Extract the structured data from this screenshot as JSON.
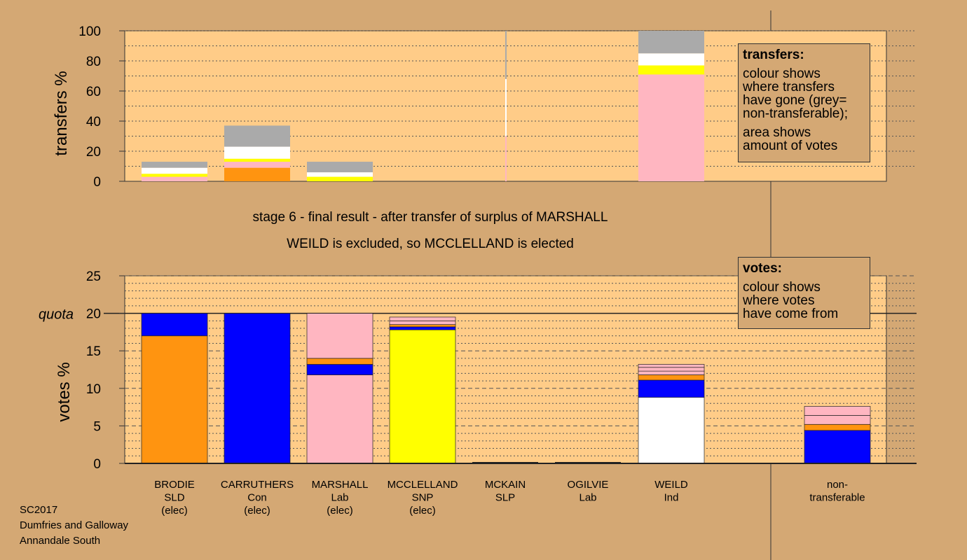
{
  "chart_data": [
    {
      "type": "bar",
      "name": "transfers",
      "ylabel": "transfers %",
      "ylim": [
        0,
        100
      ],
      "yticks": [
        0,
        20,
        40,
        60,
        80,
        100
      ],
      "columns": [
        {
          "label": "BRODIE",
          "segments": [
            {
              "color": "#FFB6C1",
              "value": 3
            },
            {
              "color": "#FFFF00",
              "value": 2
            },
            {
              "color": "#FFFFFF",
              "value": 4
            },
            {
              "color": "#AAAAAA",
              "value": 4
            }
          ]
        },
        {
          "label": "CARRUTHERS",
          "segments": [
            {
              "color": "#FF9410",
              "value": 9
            },
            {
              "color": "#FFB6C1",
              "value": 4
            },
            {
              "color": "#FFFF00",
              "value": 2
            },
            {
              "color": "#FFFFFF",
              "value": 8
            },
            {
              "color": "#AAAAAA",
              "value": 14
            }
          ]
        },
        {
          "label": "MARSHALL",
          "segments": [
            {
              "color": "#FFFF00",
              "value": 3
            },
            {
              "color": "#FFFFFF",
              "value": 3
            },
            {
              "color": "#AAAAAA",
              "value": 7
            }
          ]
        },
        {
          "label": "MCCLELLAND",
          "segments": []
        },
        {
          "label": "MCKAIN",
          "segments": []
        },
        {
          "label": "OGILVIE",
          "segments": [
            {
              "color": "#FFB6C1",
              "value": 30
            },
            {
              "color": "#FFFFFF",
              "value": 38
            },
            {
              "color": "#AAAAAA",
              "value": 32
            }
          ],
          "thin": true
        },
        {
          "label": "WEILD",
          "segments": [
            {
              "color": "#FFB6C1",
              "value": 71
            },
            {
              "color": "#FFFF00",
              "value": 6
            },
            {
              "color": "#FFFFFF",
              "value": 8
            },
            {
              "color": "#AAAAAA",
              "value": 15
            }
          ]
        },
        {
          "label": "non-transferable",
          "segments": []
        }
      ]
    },
    {
      "type": "bar",
      "name": "votes",
      "ylabel": "votes %",
      "ylim": [
        0,
        25
      ],
      "yticks": [
        0,
        5,
        10,
        15,
        20,
        25
      ],
      "quota": 20,
      "quota_label": "quota",
      "categories": [
        [
          "BRODIE",
          "SLD",
          "(elec)"
        ],
        [
          "CARRUTHERS",
          "Con",
          "(elec)"
        ],
        [
          "MARSHALL",
          "Lab",
          "(elec)"
        ],
        [
          "MCCLELLAND",
          "SNP",
          "(elec)"
        ],
        [
          "MCKAIN",
          "SLP"
        ],
        [
          "OGILVIE",
          "Lab"
        ],
        [
          "WEILD",
          "Ind"
        ],
        [
          "non-",
          "transferable"
        ]
      ],
      "columns": [
        {
          "segments": [
            {
              "color": "#FF9410",
              "value": 17
            },
            {
              "color": "#0000FF",
              "value": 3
            }
          ]
        },
        {
          "segments": [
            {
              "color": "#0000FF",
              "value": 20
            }
          ]
        },
        {
          "segments": [
            {
              "color": "#FFB6C1",
              "value": 11.8
            },
            {
              "color": "#0000FF",
              "value": 1.4
            },
            {
              "color": "#FF9410",
              "value": 0.8
            },
            {
              "color": "#FFB6C1",
              "value": 6
            }
          ]
        },
        {
          "segments": [
            {
              "color": "#FFFF00",
              "value": 17.8
            },
            {
              "color": "#0000FF",
              "value": 0.4
            },
            {
              "color": "#FF9410",
              "value": 0.3
            },
            {
              "color": "#FFB6C1",
              "value": 0.5
            },
            {
              "color": "#FFB6C1",
              "value": 0.5
            }
          ]
        },
        {
          "segments": []
        },
        {
          "segments": []
        },
        {
          "segments": [
            {
              "color": "#FFFFFF",
              "value": 8.8
            },
            {
              "color": "#0000FF",
              "value": 2.3
            },
            {
              "color": "#FF9410",
              "value": 0.7
            },
            {
              "color": "#FFB6C1",
              "value": 0.5
            },
            {
              "color": "#FFB6C1",
              "value": 0.5
            },
            {
              "color": "#FFB6C1",
              "value": 0.4
            }
          ]
        },
        {
          "segments": [
            {
              "color": "#0000FF",
              "value": 4.4
            },
            {
              "color": "#FF9410",
              "value": 0.8
            },
            {
              "color": "#FFB6C1",
              "value": 1.2
            },
            {
              "color": "#FFB6C1",
              "value": 1.2
            }
          ]
        }
      ]
    }
  ],
  "stage_line_1": "stage 6 - final result - after transfer of surplus of MARSHALL",
  "stage_line_2": "WEILD is excluded, so MCCLELLAND is elected",
  "legend_transfers": {
    "title": "transfers:",
    "lines": [
      "colour shows",
      "where transfers",
      "have gone (grey=",
      "non-transferable);"
    ],
    "lines2": [
      "area shows",
      "amount of votes"
    ]
  },
  "legend_votes": {
    "title": "votes:",
    "lines": [
      "colour shows",
      "where votes",
      "have come from"
    ]
  },
  "footer": [
    "SC2017",
    "Dumfries and Galloway",
    "Annandale South"
  ],
  "colors": {
    "background": "#D4A874",
    "plot_bg": "#FFCC88"
  }
}
